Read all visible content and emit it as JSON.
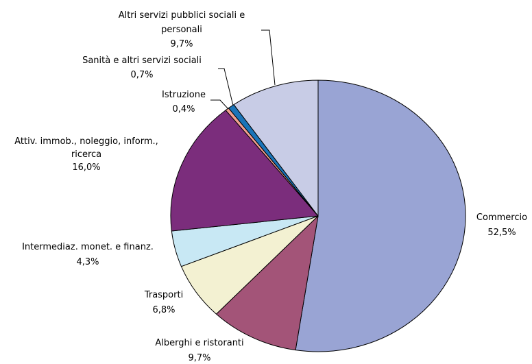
{
  "chart_data": {
    "type": "pie",
    "slices": [
      {
        "label": "Commercio",
        "value_label": "52,5%",
        "value": 52.5,
        "color": "#99a4d4"
      },
      {
        "label": "Alberghi e ristoranti",
        "value_label": "9,7%",
        "value": 9.7,
        "color": "#a35478"
      },
      {
        "label": "Trasporti",
        "value_label": "6,8%",
        "value": 6.8,
        "color": "#f3f1d2"
      },
      {
        "label": "Intermediaz. monet. e finanz.",
        "value_label": "4,3%",
        "value": 4.3,
        "color": "#c8e8f4"
      },
      {
        "label": "Attiv. immob., noleggio, inform., ricerca",
        "value_label": "16,0%",
        "value": 16.0,
        "color": "#7b2d7c"
      },
      {
        "label": "Istruzione",
        "value_label": "0,4%",
        "value": 0.4,
        "color": "#f0a090"
      },
      {
        "label": "Sanità e altri servizi sociali",
        "value_label": "0,7%",
        "value": 0.7,
        "color": "#1a74b8"
      },
      {
        "label": "Altri servizi pubblici sociali e personali",
        "value_label": "9,7%",
        "value": 9.7,
        "color": "#c8cce6"
      }
    ]
  }
}
